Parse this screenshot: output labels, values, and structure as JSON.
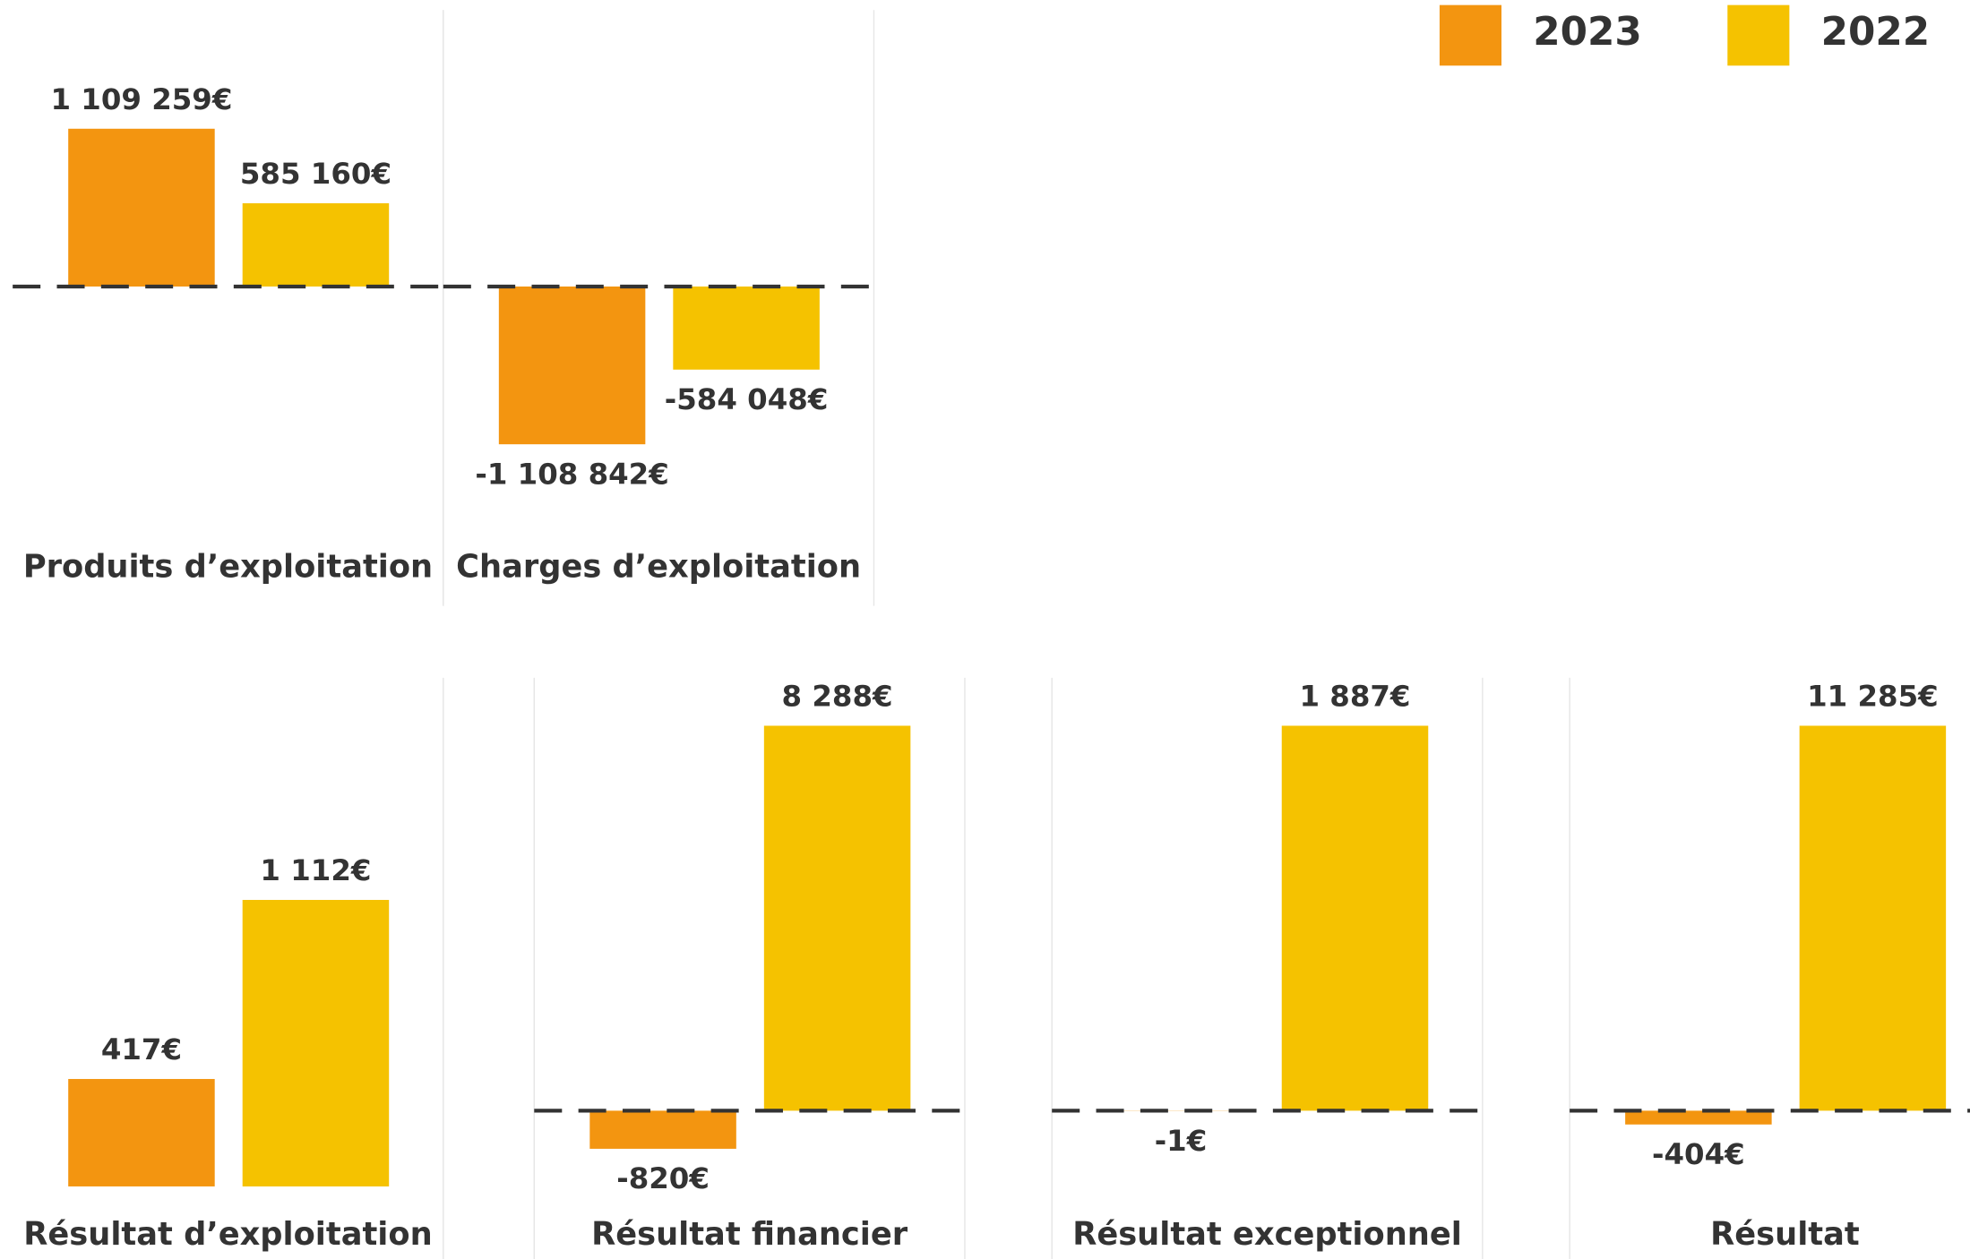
{
  "chart_data": {
    "type": "bar",
    "categories": [
      "Produits d’exploitation",
      "Charges d’exploitation",
      "Résultat d’exploitation",
      "Résultat financier",
      "Résultat exceptionnel",
      "Résultat"
    ],
    "series": [
      {
        "name": "2023",
        "color": "#f39510",
        "values": [
          1109259,
          -1108842,
          417,
          -820,
          -1,
          -404
        ],
        "value_labels": [
          "1 109 259€",
          "-1 108 842€",
          "417€",
          "-820€",
          "-1€",
          "-404€"
        ]
      },
      {
        "name": "2022",
        "color": "#f5c200",
        "values": [
          585160,
          -584048,
          1112,
          8288,
          1887,
          11285
        ],
        "value_labels": [
          "585 160€",
          "-584 048€",
          "1 112€",
          "8 288€",
          "1 887€",
          "11 285€"
        ]
      }
    ]
  }
}
